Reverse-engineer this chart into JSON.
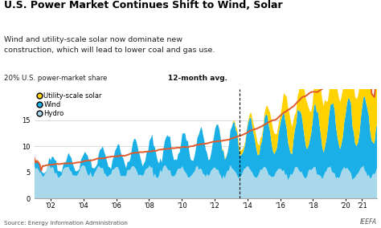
{
  "title": "U.S. Power Market Continues Shift to Wind, Solar",
  "subtitle": "Wind and utility-scale solar now dominate new\nconstruction, which will lead to lower coal and gas use.",
  "ylabel": "20% U.S. power-market share",
  "ylabel2": "12-month avg.",
  "source": "Source: Energy Information Administration",
  "watermark": "IEEFA",
  "ylim": [
    0,
    21
  ],
  "yticks": [
    0,
    5,
    10,
    15
  ],
  "start_year": 2001.0,
  "end_year": 2021.92,
  "dashed_line_x": 2013.5,
  "colors": {
    "hydro": "#a8d8ea",
    "wind": "#1aafe6",
    "solar": "#ffd200",
    "avg_line": "#e05a2b",
    "dashed_line": "#000000"
  },
  "legend_items": [
    "Utility-scale solar",
    "Wind",
    "Hydro"
  ],
  "legend_colors": [
    "#ffd200",
    "#1aafe6",
    "#a8d8ea"
  ]
}
